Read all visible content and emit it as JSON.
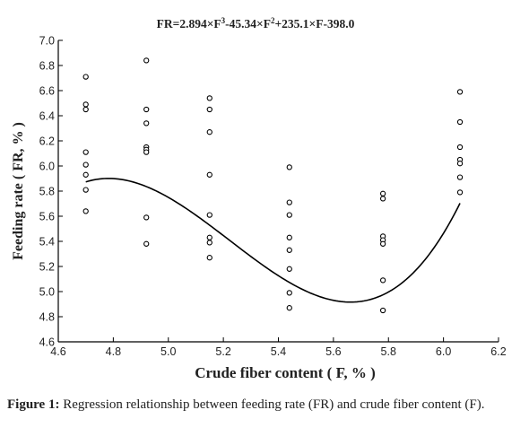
{
  "chart_data": {
    "type": "scatter",
    "title_parts": {
      "a": "FR=2.894×F",
      "sup1": "3",
      "b": "-45.34×F",
      "sup2": "2",
      "c": "+235.1×F-398.0"
    },
    "xlabel": "Crude fiber content ( F, % )",
    "ylabel": "Feeding rate ( FR, % )",
    "xlim": [
      4.6,
      6.2
    ],
    "ylim": [
      4.6,
      7.0
    ],
    "x_ticks": [
      "4.6",
      "4.8",
      "5.0",
      "5.2",
      "5.4",
      "5.6",
      "5.8",
      "6.0",
      "6.2"
    ],
    "y_ticks": [
      "4.6",
      "4.8",
      "5.0",
      "5.2",
      "5.4",
      "5.6",
      "5.8",
      "6.0",
      "6.2",
      "6.4",
      "6.6",
      "6.8",
      "7.0"
    ],
    "grid": false,
    "series": [
      {
        "marker": "open-circle",
        "points": [
          [
            4.7,
            6.71
          ],
          [
            4.7,
            6.49
          ],
          [
            4.7,
            6.45
          ],
          [
            4.7,
            6.11
          ],
          [
            4.7,
            6.01
          ],
          [
            4.7,
            5.93
          ],
          [
            4.7,
            5.81
          ],
          [
            4.7,
            5.64
          ],
          [
            4.92,
            6.84
          ],
          [
            4.92,
            6.45
          ],
          [
            4.92,
            6.34
          ],
          [
            4.92,
            6.15
          ],
          [
            4.92,
            6.13
          ],
          [
            4.92,
            6.11
          ],
          [
            4.92,
            5.59
          ],
          [
            4.92,
            5.38
          ],
          [
            5.15,
            6.54
          ],
          [
            5.15,
            6.45
          ],
          [
            5.15,
            6.27
          ],
          [
            5.15,
            5.93
          ],
          [
            5.15,
            5.61
          ],
          [
            5.15,
            5.43
          ],
          [
            5.15,
            5.39
          ],
          [
            5.15,
            5.27
          ],
          [
            5.44,
            5.99
          ],
          [
            5.44,
            5.71
          ],
          [
            5.44,
            5.61
          ],
          [
            5.44,
            5.43
          ],
          [
            5.44,
            5.33
          ],
          [
            5.44,
            5.18
          ],
          [
            5.44,
            4.99
          ],
          [
            5.44,
            4.87
          ],
          [
            5.78,
            5.78
          ],
          [
            5.78,
            5.74
          ],
          [
            5.78,
            5.44
          ],
          [
            5.78,
            5.41
          ],
          [
            5.78,
            5.38
          ],
          [
            5.78,
            5.09
          ],
          [
            5.78,
            4.85
          ],
          [
            6.06,
            6.59
          ],
          [
            6.06,
            6.35
          ],
          [
            6.06,
            6.15
          ],
          [
            6.06,
            6.05
          ],
          [
            6.06,
            6.02
          ],
          [
            6.06,
            5.91
          ],
          [
            6.06,
            5.79
          ]
        ]
      },
      {
        "type": "line",
        "coefficients": [
          2.894,
          -45.34,
          235.1,
          -398.0
        ],
        "x_range": [
          4.7,
          6.06
        ]
      }
    ]
  },
  "caption": {
    "label": "Figure 1:",
    "text": " Regression relationship between feeding rate (FR) and crude fiber content (F)."
  },
  "colors": {
    "axis": "#000000",
    "marker": "#000000",
    "curve": "#000000"
  }
}
